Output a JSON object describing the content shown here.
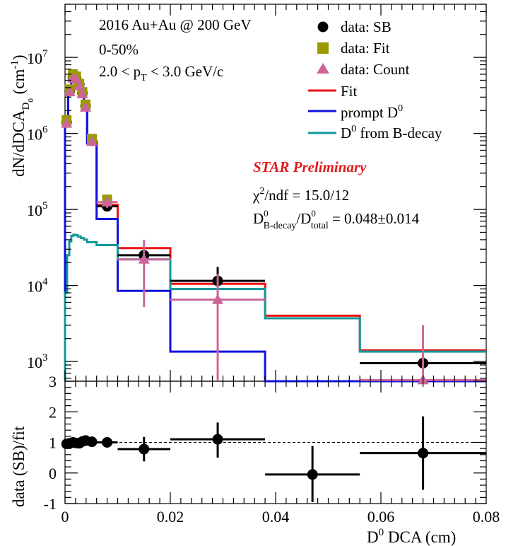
{
  "annotations": {
    "line1": "2016 Au+Au @ 200 GeV",
    "line2": "0-50%",
    "pt_lo": "2.0 < p",
    "pt_sub": "T",
    "pt_hi": " < 3.0 GeV/c",
    "star": "STAR Preliminary",
    "chi_sym": "χ",
    "chi_sup": "2",
    "chi_rest": "/ndf = 15.0/12",
    "ratio_D1": "D",
    "ratio_sup1": "0",
    "ratio_sub1": "B-decay",
    "ratio_slash": "/D",
    "ratio_sup2": "0",
    "ratio_sub2": "total",
    "ratio_val": " = 0.048±0.014"
  },
  "legend": [
    {
      "label": "data: SB",
      "marker": "circle",
      "color": "#000000"
    },
    {
      "label": "data: Fit",
      "marker": "square",
      "color": "#9a9a00"
    },
    {
      "label": "data: Count",
      "marker": "triangle",
      "color": "#cc6699"
    },
    {
      "label": "Fit",
      "marker": "line",
      "color": "#ee1111"
    },
    {
      "label": "prompt D",
      "sup": "0",
      "marker": "line",
      "color": "#1111dd"
    },
    {
      "label": "D",
      "sup": "0",
      "after": " from B-decay",
      "marker": "line",
      "color": "#119999"
    }
  ],
  "top_ylabel": {
    "main": "dN/dDCA",
    "sub": "D",
    "subsub": "0",
    "unit": " (cm",
    "unit_sup": "-1",
    "unit_close": ")"
  },
  "bottom_ylabel": "data (SB)/fit",
  "xlabel": {
    "main": "D",
    "sup": "0",
    "rest": " DCA (cm)"
  },
  "top_yticks": [
    {
      "base": "10",
      "exp": "3",
      "value": 1000
    },
    {
      "base": "10",
      "exp": "4",
      "value": 10000
    },
    {
      "base": "10",
      "exp": "5",
      "value": 100000
    },
    {
      "base": "10",
      "exp": "6",
      "value": 1000000
    },
    {
      "base": "10",
      "exp": "7",
      "value": 10000000
    }
  ],
  "bottom_yticks": [
    "-1",
    "0",
    "1",
    "2",
    "3"
  ],
  "xticks": [
    "0",
    "0.02",
    "0.04",
    "0.06",
    "0.08"
  ],
  "chart_data": [
    {
      "type": "scatter",
      "panel": "top",
      "yscale": "log",
      "xlim": [
        0,
        0.08
      ],
      "ylim": [
        550,
        50000000
      ],
      "series": [
        {
          "name": "data: SB",
          "color": "#000000",
          "points": [
            {
              "x": 0.0003,
              "y": 1400000,
              "xlo": 0.0,
              "xhi": 0.0006,
              "ylo": 1250000,
              "yhi": 1550000
            },
            {
              "x": 0.0009,
              "y": 3600000,
              "xlo": 0.0006,
              "xhi": 0.0012,
              "ylo": 3300000,
              "yhi": 3900000
            },
            {
              "x": 0.0015,
              "y": 5500000,
              "xlo": 0.0012,
              "xhi": 0.0018,
              "ylo": 5100000,
              "yhi": 5900000
            },
            {
              "x": 0.0021,
              "y": 5400000,
              "xlo": 0.0018,
              "xhi": 0.0024,
              "ylo": 5000000,
              "yhi": 5800000
            },
            {
              "x": 0.0027,
              "y": 4400000,
              "xlo": 0.0024,
              "xhi": 0.003,
              "ylo": 4100000,
              "yhi": 4700000
            },
            {
              "x": 0.0033,
              "y": 3400000,
              "xlo": 0.003,
              "xhi": 0.0036,
              "ylo": 3150000,
              "yhi": 3650000
            },
            {
              "x": 0.0039,
              "y": 2300000,
              "xlo": 0.0036,
              "xhi": 0.0042,
              "ylo": 2100000,
              "yhi": 2500000
            },
            {
              "x": 0.0051,
              "y": 800000,
              "xlo": 0.0042,
              "xhi": 0.006,
              "ylo": 740000,
              "yhi": 860000
            },
            {
              "x": 0.008,
              "y": 110000,
              "xlo": 0.006,
              "xhi": 0.01,
              "ylo": 95000,
              "yhi": 125000
            },
            {
              "x": 0.015,
              "y": 25000,
              "xlo": 0.01,
              "xhi": 0.02,
              "ylo": 21000,
              "yhi": 29000
            },
            {
              "x": 0.029,
              "y": 11500,
              "xlo": 0.02,
              "xhi": 0.038,
              "ylo": 7500,
              "yhi": 17500
            },
            {
              "x": 0.068,
              "y": 950,
              "xlo": 0.056,
              "xhi": 0.08,
              "ylo": 950,
              "yhi": 950
            }
          ]
        },
        {
          "name": "data: Fit",
          "color": "#9a9a00",
          "points": [
            {
              "x": 0.0003,
              "y": 1500000
            },
            {
              "x": 0.0009,
              "y": 3800000
            },
            {
              "x": 0.0015,
              "y": 6000000
            },
            {
              "x": 0.0021,
              "y": 5600000
            },
            {
              "x": 0.0027,
              "y": 4500000
            },
            {
              "x": 0.0033,
              "y": 3500000
            },
            {
              "x": 0.0039,
              "y": 2400000
            },
            {
              "x": 0.0051,
              "y": 850000
            },
            {
              "x": 0.008,
              "y": 135000
            }
          ]
        },
        {
          "name": "data: Count",
          "color": "#cc6699",
          "points": [
            {
              "x": 0.0003,
              "y": 1350000,
              "xlo": 0.0,
              "xhi": 0.0006,
              "ylo": 1200000,
              "yhi": 1500000
            },
            {
              "x": 0.0009,
              "y": 3500000,
              "xlo": 0.0006,
              "xhi": 0.0012,
              "ylo": 3200000,
              "yhi": 3800000
            },
            {
              "x": 0.0015,
              "y": 5300000,
              "xlo": 0.0012,
              "xhi": 0.0018,
              "ylo": 4900000,
              "yhi": 5700000
            },
            {
              "x": 0.0021,
              "y": 5200000,
              "xlo": 0.0018,
              "xhi": 0.0024,
              "ylo": 4800000,
              "yhi": 5600000
            },
            {
              "x": 0.0027,
              "y": 4200000,
              "xlo": 0.0024,
              "xhi": 0.003,
              "ylo": 3900000,
              "yhi": 4500000
            },
            {
              "x": 0.0033,
              "y": 3300000,
              "xlo": 0.003,
              "xhi": 0.0036,
              "ylo": 3050000,
              "yhi": 3550000
            },
            {
              "x": 0.0039,
              "y": 2200000,
              "xlo": 0.0036,
              "xhi": 0.0042,
              "ylo": 2000000,
              "yhi": 2400000
            },
            {
              "x": 0.0051,
              "y": 780000,
              "xlo": 0.0042,
              "xhi": 0.006,
              "ylo": 720000,
              "yhi": 840000
            },
            {
              "x": 0.008,
              "y": 125000,
              "xlo": 0.006,
              "xhi": 0.01,
              "ylo": 105000,
              "yhi": 145000
            },
            {
              "x": 0.015,
              "y": 22000,
              "xlo": 0.01,
              "xhi": 0.02,
              "ylo": 5200,
              "yhi": 40000
            },
            {
              "x": 0.029,
              "y": 6500,
              "xlo": 0.02,
              "xhi": 0.038,
              "ylo": 550,
              "yhi": 14000
            },
            {
              "x": 0.068,
              "y": 570,
              "xlo": 0.056,
              "xhi": 0.08,
              "ylo": 550,
              "yhi": 3000
            }
          ]
        }
      ],
      "steps": [
        {
          "name": "Fit",
          "color": "#ee1111",
          "edges": [
            0.0,
            0.0006,
            0.0012,
            0.0018,
            0.0024,
            0.003,
            0.0036,
            0.0042,
            0.006,
            0.01,
            0.02,
            0.038,
            0.056,
            0.08
          ],
          "values": [
            1450000,
            3700000,
            5600000,
            5500000,
            4400000,
            3400000,
            2300000,
            780000,
            115000,
            31000,
            10500,
            4000,
            1400
          ]
        },
        {
          "name": "prompt D0",
          "color": "#1111dd",
          "edges": [
            0.0,
            0.0006,
            0.0012,
            0.0018,
            0.0024,
            0.003,
            0.0036,
            0.0042,
            0.006,
            0.01,
            0.02,
            0.038,
            0.056,
            0.08
          ],
          "values": [
            1400000,
            3650000,
            5550000,
            5450000,
            4350000,
            3350000,
            2250000,
            740000,
            75000,
            8500,
            1350,
            540,
            540
          ]
        },
        {
          "name": "D0 from B-decay",
          "color": "#119999",
          "edges": [
            0.0,
            0.0004,
            0.0008,
            0.0012,
            0.0016,
            0.002,
            0.0024,
            0.003,
            0.0036,
            0.0042,
            0.006,
            0.01,
            0.02,
            0.038,
            0.056,
            0.08
          ],
          "values": [
            8000,
            25000,
            38000,
            45000,
            46500,
            46000,
            44000,
            42000,
            40000,
            37000,
            34000,
            22000,
            9000,
            3700,
            1350
          ]
        }
      ]
    },
    {
      "type": "scatter",
      "panel": "bottom",
      "xlim": [
        0,
        0.08
      ],
      "ylim": [
        -1,
        3
      ],
      "reference_line": 1,
      "series": [
        {
          "name": "data (SB)/fit",
          "color": "#000000",
          "points": [
            {
              "x": 0.0003,
              "y": 0.95,
              "xlo": 0.0,
              "xhi": 0.0006,
              "ylo": 0.85,
              "yhi": 1.05
            },
            {
              "x": 0.0009,
              "y": 0.97,
              "xlo": 0.0006,
              "xhi": 0.0012,
              "ylo": 0.88,
              "yhi": 1.06
            },
            {
              "x": 0.0015,
              "y": 1.0,
              "xlo": 0.0012,
              "xhi": 0.0018,
              "ylo": 0.92,
              "yhi": 1.08
            },
            {
              "x": 0.0021,
              "y": 0.98,
              "xlo": 0.0018,
              "xhi": 0.0024,
              "ylo": 0.9,
              "yhi": 1.06
            },
            {
              "x": 0.0027,
              "y": 0.97,
              "xlo": 0.0024,
              "xhi": 0.003,
              "ylo": 0.89,
              "yhi": 1.05
            },
            {
              "x": 0.0033,
              "y": 1.03,
              "xlo": 0.003,
              "xhi": 0.0036,
              "ylo": 0.95,
              "yhi": 1.11
            },
            {
              "x": 0.0039,
              "y": 1.06,
              "xlo": 0.0036,
              "xhi": 0.0042,
              "ylo": 0.98,
              "yhi": 1.14
            },
            {
              "x": 0.0051,
              "y": 1.02,
              "xlo": 0.0042,
              "xhi": 0.006,
              "ylo": 0.94,
              "yhi": 1.1
            },
            {
              "x": 0.008,
              "y": 1.0,
              "xlo": 0.006,
              "xhi": 0.01,
              "ylo": 0.86,
              "yhi": 1.14
            },
            {
              "x": 0.015,
              "y": 0.78,
              "xlo": 0.01,
              "xhi": 0.02,
              "ylo": 0.38,
              "yhi": 1.18
            },
            {
              "x": 0.029,
              "y": 1.1,
              "xlo": 0.02,
              "xhi": 0.038,
              "ylo": 0.5,
              "yhi": 1.65
            },
            {
              "x": 0.047,
              "y": -0.05,
              "xlo": 0.038,
              "xhi": 0.056,
              "ylo": -0.95,
              "yhi": 0.88
            },
            {
              "x": 0.068,
              "y": 0.65,
              "xlo": 0.056,
              "xhi": 0.08,
              "ylo": -0.55,
              "yhi": 1.85
            }
          ]
        }
      ]
    }
  ]
}
